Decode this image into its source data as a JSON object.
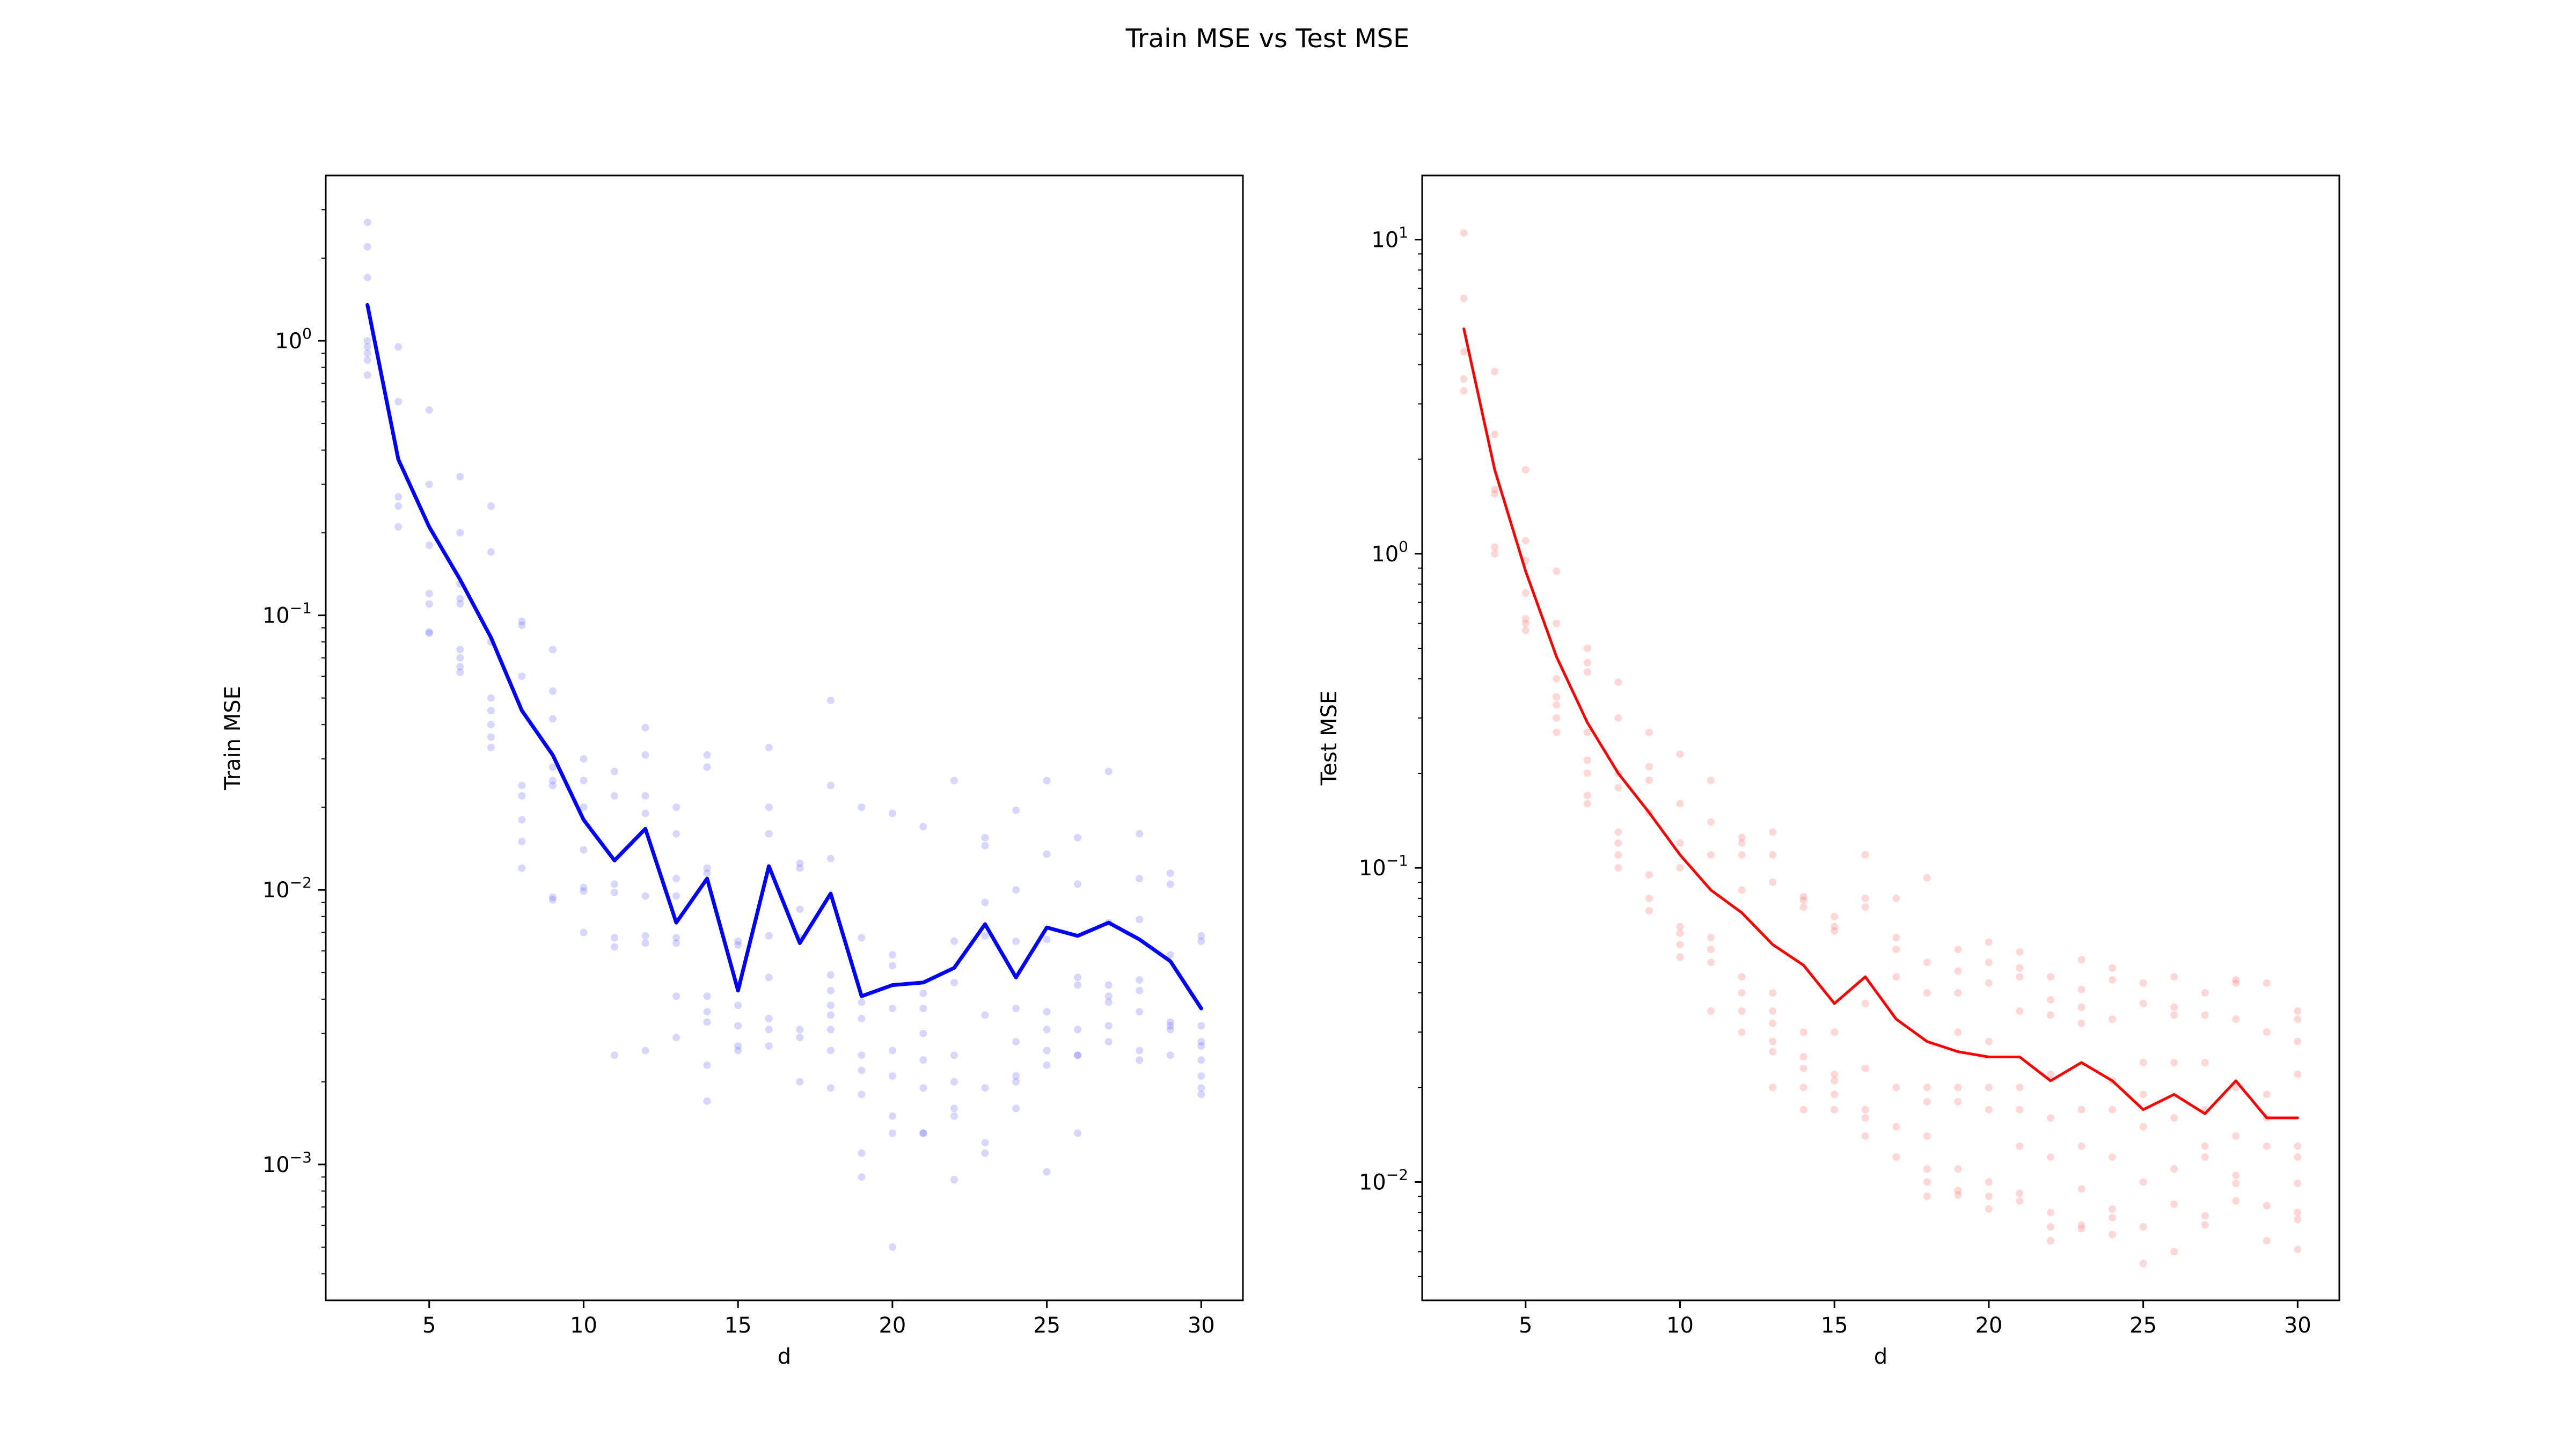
{
  "figure": {
    "title": "Train MSE vs Test MSE"
  },
  "chart_data": [
    {
      "type": "line",
      "name": "train",
      "title": "",
      "xlabel": "d",
      "ylabel": "Train MSE",
      "yscale": "log",
      "xlim": [
        1.65,
        31.35
      ],
      "ylim": [
        0.00032,
        4.0
      ],
      "xticks": [
        5,
        10,
        15,
        20,
        25,
        30
      ],
      "yticks": [
        {
          "value": 0.001,
          "base": "10",
          "exp": "−3"
        },
        {
          "value": 0.01,
          "base": "10",
          "exp": "−2"
        },
        {
          "value": 0.1,
          "base": "10",
          "exp": "−1"
        },
        {
          "value": 1,
          "base": "10",
          "exp": "0"
        }
      ],
      "grid": false,
      "line_color": "#0000ff",
      "point_color": "#6b6bff",
      "x": [
        3,
        4,
        5,
        6,
        7,
        8,
        9,
        10,
        11,
        12,
        13,
        14,
        15,
        16,
        17,
        18,
        19,
        20,
        21,
        22,
        23,
        24,
        25,
        26,
        27,
        28,
        29,
        30
      ],
      "mean": [
        1.35,
        0.37,
        0.21,
        0.135,
        0.083,
        0.045,
        0.031,
        0.018,
        0.0128,
        0.0167,
        0.0076,
        0.011,
        0.0043,
        0.0122,
        0.0064,
        0.0097,
        0.0041,
        0.0045,
        0.0046,
        0.0052,
        0.0075,
        0.0048,
        0.0073,
        0.0068,
        0.0076,
        0.0066,
        0.0055,
        0.0037
      ],
      "points": [
        [
          2.7,
          2.2,
          1.7,
          1.0,
          0.95,
          0.9,
          0.85,
          0.75
        ],
        [
          0.95,
          0.6,
          0.27,
          0.25,
          0.21
        ],
        [
          0.56,
          0.3,
          0.18,
          0.12,
          0.11,
          0.087,
          0.086
        ],
        [
          0.32,
          0.2,
          0.13,
          0.115,
          0.11,
          0.075,
          0.07,
          0.065,
          0.062
        ],
        [
          0.25,
          0.17,
          0.08,
          0.05,
          0.045,
          0.04,
          0.036,
          0.033
        ],
        [
          0.095,
          0.092,
          0.06,
          0.024,
          0.022,
          0.018,
          0.015,
          0.012
        ],
        [
          0.075,
          0.053,
          0.042,
          0.028,
          0.025,
          0.024,
          0.0094,
          0.0092
        ],
        [
          0.03,
          0.025,
          0.02,
          0.014,
          0.0102,
          0.0099,
          0.007
        ],
        [
          0.027,
          0.022,
          0.0105,
          0.0098,
          0.0067,
          0.0062,
          0.0025
        ],
        [
          0.039,
          0.031,
          0.022,
          0.019,
          0.0095,
          0.0068,
          0.0064,
          0.0026
        ],
        [
          0.02,
          0.016,
          0.011,
          0.0095,
          0.0067,
          0.0064,
          0.0041,
          0.0029
        ],
        [
          0.031,
          0.028,
          0.012,
          0.0115,
          0.0041,
          0.0036,
          0.0033,
          0.0023,
          0.0017
        ],
        [
          0.0065,
          0.0063,
          0.0045,
          0.0038,
          0.0032,
          0.0027,
          0.0026
        ],
        [
          0.033,
          0.02,
          0.016,
          0.0068,
          0.0048,
          0.0034,
          0.0031,
          0.0027
        ],
        [
          0.0125,
          0.012,
          0.0085,
          0.0067,
          0.0031,
          0.0029,
          0.002
        ],
        [
          0.049,
          0.024,
          0.013,
          0.0049,
          0.0043,
          0.0038,
          0.0035,
          0.0031,
          0.0026,
          0.0019
        ],
        [
          0.02,
          0.0067,
          0.0039,
          0.0034,
          0.0025,
          0.0022,
          0.0018,
          0.0011,
          0.0009
        ],
        [
          0.019,
          0.0058,
          0.0053,
          0.0037,
          0.0026,
          0.0021,
          0.0015,
          0.0013,
          0.0005
        ],
        [
          0.017,
          0.0042,
          0.0037,
          0.003,
          0.0024,
          0.0019,
          0.0013,
          0.0013
        ],
        [
          0.025,
          0.0065,
          0.0046,
          0.0025,
          0.002,
          0.0016,
          0.0015,
          0.00088
        ],
        [
          0.0155,
          0.0145,
          0.009,
          0.0068,
          0.0035,
          0.0019,
          0.0012,
          0.0011
        ],
        [
          0.0195,
          0.01,
          0.0065,
          0.0037,
          0.0028,
          0.0021,
          0.002,
          0.0016
        ],
        [
          0.025,
          0.0135,
          0.0066,
          0.0036,
          0.0031,
          0.0026,
          0.0023,
          0.00094
        ],
        [
          0.0155,
          0.0105,
          0.0048,
          0.0045,
          0.0031,
          0.0025,
          0.0025,
          0.0013
        ],
        [
          0.027,
          0.0076,
          0.0045,
          0.0041,
          0.0039,
          0.0032,
          0.0028
        ],
        [
          0.016,
          0.011,
          0.0078,
          0.0047,
          0.0043,
          0.0036,
          0.0026,
          0.0024
        ],
        [
          0.0115,
          0.0105,
          0.0058,
          0.0033,
          0.0032,
          0.0031,
          0.0025
        ],
        [
          0.0068,
          0.0065,
          0.0032,
          0.0028,
          0.0027,
          0.0024,
          0.0021,
          0.0019,
          0.0018
        ]
      ]
    },
    {
      "type": "line",
      "name": "test",
      "title": "",
      "xlabel": "d",
      "ylabel": "Test MSE",
      "yscale": "log",
      "xlim": [
        1.65,
        31.35
      ],
      "ylim": [
        0.0042,
        16.0
      ],
      "xticks": [
        5,
        10,
        15,
        20,
        25,
        30
      ],
      "yticks": [
        {
          "value": 0.01,
          "base": "10",
          "exp": "−2"
        },
        {
          "value": 0.1,
          "base": "10",
          "exp": "−1"
        },
        {
          "value": 1,
          "base": "10",
          "exp": "0"
        },
        {
          "value": 10,
          "base": "10",
          "exp": "1"
        }
      ],
      "grid": false,
      "line_color": "#ff0000",
      "point_color": "#ff7070",
      "x": [
        3,
        4,
        5,
        6,
        7,
        8,
        9,
        10,
        11,
        12,
        13,
        14,
        15,
        16,
        17,
        18,
        19,
        20,
        21,
        22,
        23,
        24,
        25,
        26,
        27,
        28,
        29,
        30
      ],
      "mean": [
        5.2,
        1.85,
        0.88,
        0.47,
        0.29,
        0.2,
        0.15,
        0.11,
        0.085,
        0.072,
        0.057,
        0.049,
        0.037,
        0.045,
        0.033,
        0.028,
        0.026,
        0.025,
        0.025,
        0.021,
        0.024,
        0.021,
        0.017,
        0.019,
        0.0165,
        0.021,
        0.016,
        0.016
      ],
      "points": [
        [
          10.5,
          6.5,
          4.4,
          3.6,
          3.3
        ],
        [
          3.8,
          2.4,
          1.6,
          1.55,
          1.05,
          1.0
        ],
        [
          1.85,
          1.1,
          0.95,
          0.75,
          0.62,
          0.6,
          0.57
        ],
        [
          0.88,
          0.6,
          0.4,
          0.35,
          0.33,
          0.3,
          0.27
        ],
        [
          0.5,
          0.45,
          0.42,
          0.27,
          0.22,
          0.2,
          0.17,
          0.16
        ],
        [
          0.39,
          0.3,
          0.2,
          0.18,
          0.13,
          0.12,
          0.11,
          0.1
        ],
        [
          0.27,
          0.21,
          0.19,
          0.15,
          0.095,
          0.08,
          0.073
        ],
        [
          0.23,
          0.16,
          0.12,
          0.1,
          0.065,
          0.062,
          0.057,
          0.052
        ],
        [
          0.19,
          0.14,
          0.11,
          0.06,
          0.055,
          0.05,
          0.035
        ],
        [
          0.125,
          0.12,
          0.11,
          0.085,
          0.045,
          0.04,
          0.035,
          0.03
        ],
        [
          0.13,
          0.11,
          0.09,
          0.04,
          0.035,
          0.032,
          0.028,
          0.026,
          0.02
        ],
        [
          0.081,
          0.079,
          0.075,
          0.03,
          0.025,
          0.023,
          0.02,
          0.017
        ],
        [
          0.07,
          0.065,
          0.063,
          0.03,
          0.022,
          0.021,
          0.019,
          0.017
        ],
        [
          0.11,
          0.08,
          0.075,
          0.037,
          0.023,
          0.017,
          0.016,
          0.014
        ],
        [
          0.08,
          0.06,
          0.055,
          0.045,
          0.02,
          0.015,
          0.012
        ],
        [
          0.093,
          0.05,
          0.04,
          0.02,
          0.018,
          0.014,
          0.011,
          0.01,
          0.009
        ],
        [
          0.055,
          0.047,
          0.04,
          0.03,
          0.02,
          0.018,
          0.011,
          0.0094,
          0.0091
        ],
        [
          0.058,
          0.05,
          0.043,
          0.028,
          0.02,
          0.017,
          0.01,
          0.009,
          0.0082
        ],
        [
          0.054,
          0.048,
          0.045,
          0.035,
          0.02,
          0.017,
          0.013,
          0.0092,
          0.0087
        ],
        [
          0.045,
          0.038,
          0.034,
          0.022,
          0.016,
          0.012,
          0.008,
          0.0072,
          0.0065
        ],
        [
          0.051,
          0.041,
          0.036,
          0.032,
          0.017,
          0.013,
          0.0095,
          0.0073,
          0.0071
        ],
        [
          0.048,
          0.044,
          0.033,
          0.021,
          0.017,
          0.012,
          0.0082,
          0.0077,
          0.0068
        ],
        [
          0.043,
          0.037,
          0.024,
          0.019,
          0.015,
          0.01,
          0.0072,
          0.0055
        ],
        [
          0.045,
          0.036,
          0.034,
          0.024,
          0.016,
          0.011,
          0.0085,
          0.006
        ],
        [
          0.04,
          0.034,
          0.024,
          0.017,
          0.013,
          0.012,
          0.0078,
          0.0073
        ],
        [
          0.044,
          0.043,
          0.033,
          0.02,
          0.014,
          0.0105,
          0.0099,
          0.0087
        ],
        [
          0.043,
          0.03,
          0.019,
          0.016,
          0.013,
          0.0084,
          0.0065
        ],
        [
          0.035,
          0.033,
          0.028,
          0.022,
          0.013,
          0.012,
          0.0099,
          0.008,
          0.0076,
          0.0061
        ]
      ]
    }
  ]
}
